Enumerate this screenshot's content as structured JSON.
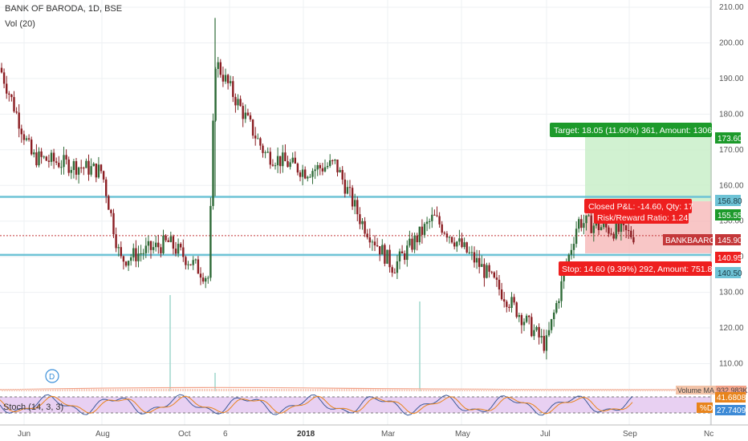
{
  "header": {
    "title": "BANK OF BARODA, 1D, BSE",
    "vol_label": "Vol (20)",
    "stoch_label": "Stoch (14, 3, 3)"
  },
  "colors": {
    "up": "#2f6b38",
    "down": "#8b1d22",
    "level_line": "#6ec3d6",
    "target_zone": "#c9efc9",
    "stop_zone": "#f6b3b3",
    "target_tag": "#1d9a2b",
    "stop_tag": "#ee1f1f",
    "price_line": "#c4383a",
    "stoch_band": "#e8d0f2",
    "stoch_k": "#3d5a99",
    "stoch_d": "#e8841c",
    "volume_ma": "#f2a38a",
    "volume_bar": "#9fd7cc"
  },
  "axis": {
    "y_ticks": [
      "210.00",
      "200.00",
      "190.00",
      "180.00",
      "170.00",
      "160.00",
      "150.00",
      "140.00",
      "130.00",
      "120.00",
      "110.00"
    ],
    "x_ticks": [
      "Jun",
      "Aug",
      "Oct",
      "6",
      "2018",
      "Mar",
      "May",
      "Jul",
      "Sep",
      "Nc"
    ]
  },
  "price_tags": {
    "target": "173.60",
    "level_high": "156.80",
    "entry": "155.55",
    "current_label": "BANKBAARODA",
    "current": "145.90",
    "stop": "140.95",
    "level_low": "140.50"
  },
  "stoch_tags": {
    "k_value": "41.6808",
    "d_label": "%D",
    "d_value": "27.7409"
  },
  "volume_tags": {
    "ma_label": "Volume MA",
    "ma_value": "932.983K"
  },
  "annotations": {
    "target": "Target: 18.05 (11.60%) 361, Amount: 1306",
    "closed_pnl": "Closed P&L: -14.60, Qty: 17",
    "risk_reward": "Risk/Reward Ratio: 1.24",
    "stop": "Stop: 14.60 (9.39%) 292, Amount: 751.8",
    "dividend_marker": "D"
  },
  "chart_data": {
    "type": "candlestick",
    "title": "BANK OF BARODA, 1D, BSE",
    "ylim": [
      105,
      212
    ],
    "y_scale": "linear",
    "grid": true,
    "horizontal_levels": [
      156.8,
      140.5
    ],
    "current_price": 145.9,
    "position": {
      "entry": 155.55,
      "target": 173.6,
      "stop": 140.95
    },
    "price_path": {
      "x": [
        "Jun",
        "",
        "Aug",
        "",
        "Oct",
        "6",
        "",
        "2018",
        "",
        "Mar",
        "",
        "May",
        "",
        "Jul",
        "",
        "Sep"
      ],
      "close": [
        193,
        168,
        164,
        139,
        144,
        134,
        195,
        169,
        164,
        166,
        150,
        137,
        151,
        137,
        115,
        150
      ]
    }
  }
}
